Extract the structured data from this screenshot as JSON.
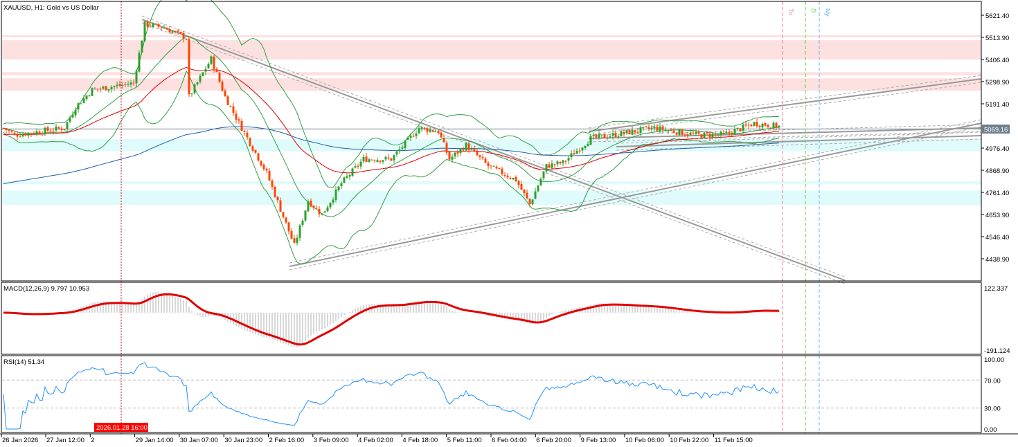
{
  "chart_data": {
    "type": "candlestick",
    "symbol_title": "XAUUSD, H1:  Gold vs US Dollar",
    "current_price": "5069.16",
    "ylim": [
      4438.9,
      5621.4
    ],
    "price_ticks": [
      "5621.40",
      "5513.90",
      "5406.40",
      "5298.90",
      "5191.40",
      "4976.40",
      "4868.90",
      "4761.40",
      "4653.90",
      "4546.40",
      "4438.90"
    ],
    "time_labels": [
      "26 Jan 2026",
      "27 Jan 12:00",
      "2",
      "29 Jan 14:00",
      "30 Jan 07:00",
      "30 Jan 23:00",
      "2 Feb 16:00",
      "3 Feb 09:00",
      "4 Feb 02:00",
      "4 Feb 18:00",
      "5 Feb 11:00",
      "6 Feb 04:00",
      "6 Feb 20:00",
      "9 Feb 13:00",
      "10 Feb 06:00",
      "10 Feb 22:00",
      "11 Feb 15:00"
    ],
    "crosshair_time_label": "2026.01.28 16:00",
    "bars_total": 281,
    "price_path": [
      [
        0,
        5074
      ],
      [
        4,
        5040
      ],
      [
        22,
        5074
      ],
      [
        26,
        5175
      ],
      [
        32,
        5259
      ],
      [
        47,
        5292
      ],
      [
        51,
        5578
      ],
      [
        58,
        5561
      ],
      [
        66,
        5511
      ],
      [
        67,
        5225
      ],
      [
        75,
        5410
      ],
      [
        80,
        5225
      ],
      [
        86,
        5074
      ],
      [
        95,
        4856
      ],
      [
        105,
        4503
      ],
      [
        110,
        4721
      ],
      [
        115,
        4654
      ],
      [
        122,
        4805
      ],
      [
        130,
        4923
      ],
      [
        140,
        4923
      ],
      [
        150,
        5074
      ],
      [
        157,
        5057
      ],
      [
        161,
        4923
      ],
      [
        167,
        4990
      ],
      [
        175,
        4889
      ],
      [
        185,
        4822
      ],
      [
        190,
        4704
      ],
      [
        196,
        4889
      ],
      [
        202,
        4906
      ],
      [
        212,
        5023
      ],
      [
        220,
        5040
      ],
      [
        235,
        5074
      ],
      [
        250,
        5040
      ],
      [
        260,
        5040
      ],
      [
        271,
        5097
      ],
      [
        281,
        5080
      ]
    ],
    "indicators": {
      "macd": {
        "label": "MACD(12,26,9) 9.797 10.953",
        "max": "122.337",
        "min": "-191.124",
        "range": [
          -191.124,
          122.337
        ]
      },
      "rsi": {
        "label": "RSI(14) 51.34",
        "ticks": [
          "100.00",
          "70.00",
          "30.00",
          "0.00"
        ],
        "levels": [
          70,
          30
        ]
      }
    },
    "zones": {
      "supply": [
        [
          5513.9,
          5525
        ],
        [
          5406.4,
          5500
        ],
        [
          5330,
          5345
        ],
        [
          5255,
          5315
        ]
      ],
      "demand": [
        [
          4960,
          5020
        ],
        [
          4800,
          4815
        ],
        [
          4700,
          4770
        ]
      ]
    },
    "session_lines": [
      {
        "label": "To",
        "color": "#f08090"
      },
      {
        "label": "S",
        "color": "#66cc33"
      },
      {
        "label": "Ny",
        "color": "#66b8f0"
      }
    ],
    "colors": {
      "bull": "#2ca02c",
      "bear": "#ff4500",
      "ema_fast": "#e00000",
      "ema_slow": "#1f5fa8",
      "bands": "#2f9e44",
      "rsi": "#1e90ff",
      "supply": "#fde0e0",
      "demand": "#e0fbfb"
    }
  }
}
